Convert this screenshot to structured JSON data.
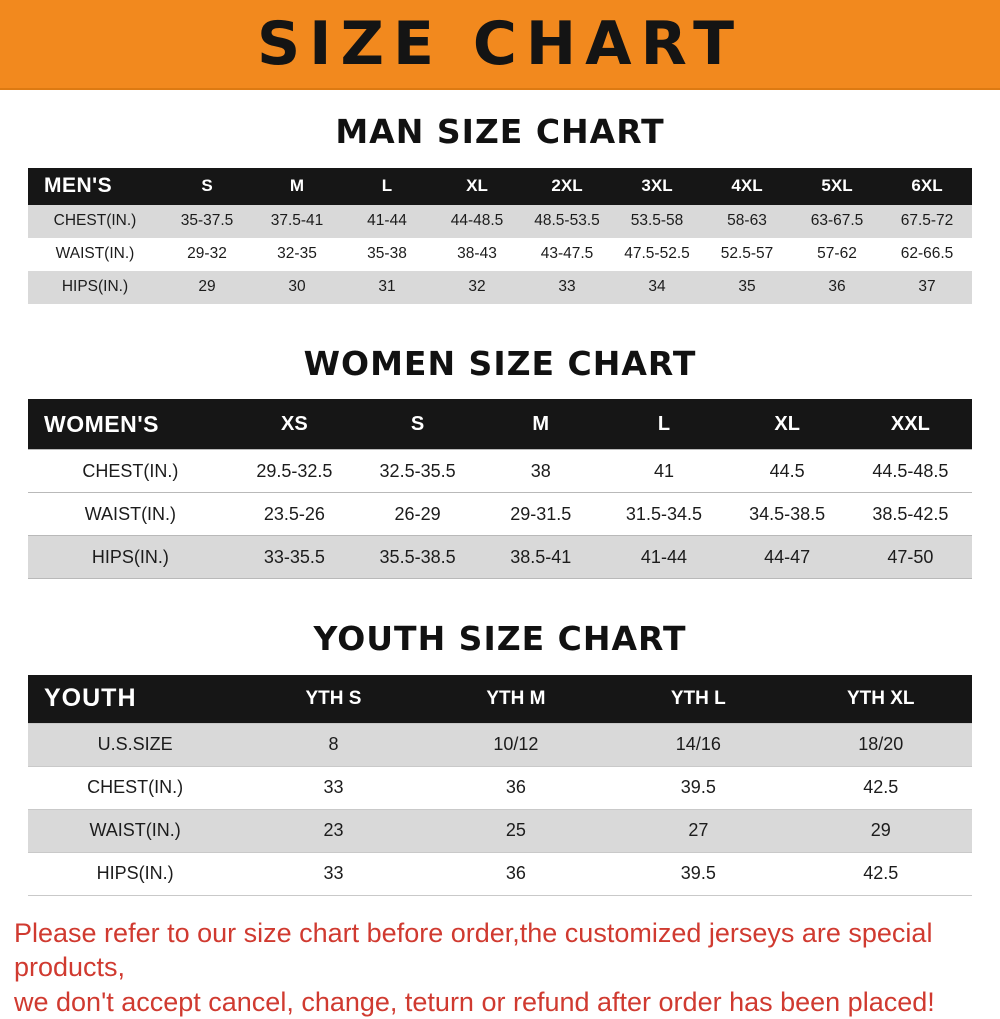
{
  "banner": {
    "title": "SIZE CHART"
  },
  "colors": {
    "banner_bg": "#f2891e",
    "table_header_bg": "#161616",
    "row_shade": "#d9d9d9",
    "disclaimer_red": "#d03a30",
    "heading_text": "#111111"
  },
  "chart_data": [
    {
      "type": "table",
      "title": "MAN SIZE CHART",
      "header_label": "MEN'S",
      "columns": [
        "S",
        "M",
        "L",
        "XL",
        "2XL",
        "3XL",
        "4XL",
        "5XL",
        "6XL"
      ],
      "rows": [
        {
          "label": "CHEST(IN.)",
          "values": [
            "35-37.5",
            "37.5-41",
            "41-44",
            "44-48.5",
            "48.5-53.5",
            "53.5-58",
            "58-63",
            "63-67.5",
            "67.5-72"
          ]
        },
        {
          "label": "WAIST(IN.)",
          "values": [
            "29-32",
            "32-35",
            "35-38",
            "38-43",
            "43-47.5",
            "47.5-52.5",
            "52.5-57",
            "57-62",
            "62-66.5"
          ]
        },
        {
          "label": "HIPS(IN.)",
          "values": [
            "29",
            "30",
            "31",
            "32",
            "33",
            "34",
            "35",
            "36",
            "37"
          ]
        }
      ]
    },
    {
      "type": "table",
      "title": "WOMEN SIZE CHART",
      "header_label": "WOMEN'S",
      "columns": [
        "XS",
        "S",
        "M",
        "L",
        "XL",
        "XXL"
      ],
      "rows": [
        {
          "label": "CHEST(IN.)",
          "values": [
            "29.5-32.5",
            "32.5-35.5",
            "38",
            "41",
            "44.5",
            "44.5-48.5"
          ]
        },
        {
          "label": "WAIST(IN.)",
          "values": [
            "23.5-26",
            "26-29",
            "29-31.5",
            "31.5-34.5",
            "34.5-38.5",
            "38.5-42.5"
          ]
        },
        {
          "label": "HIPS(IN.)",
          "values": [
            "33-35.5",
            "35.5-38.5",
            "38.5-41",
            "41-44",
            "44-47",
            "47-50"
          ]
        }
      ]
    },
    {
      "type": "table",
      "title": "YOUTH SIZE CHART",
      "header_label": "YOUTH",
      "columns": [
        "YTH S",
        "YTH M",
        "YTH L",
        "YTH XL"
      ],
      "rows": [
        {
          "label": "U.S.SIZE",
          "values": [
            "8",
            "10/12",
            "14/16",
            "18/20"
          ]
        },
        {
          "label": "CHEST(IN.)",
          "values": [
            "33",
            "36",
            "39.5",
            "42.5"
          ]
        },
        {
          "label": "WAIST(IN.)",
          "values": [
            "23",
            "25",
            "27",
            "29"
          ]
        },
        {
          "label": "HIPS(IN.)",
          "values": [
            "33",
            "36",
            "39.5",
            "42.5"
          ]
        }
      ]
    }
  ],
  "disclaimer": {
    "line1": "Please refer to our size chart before order,the customized jerseys are special products,",
    "line2": "we don't accept cancel, change, teturn or refund after order has been placed!"
  }
}
